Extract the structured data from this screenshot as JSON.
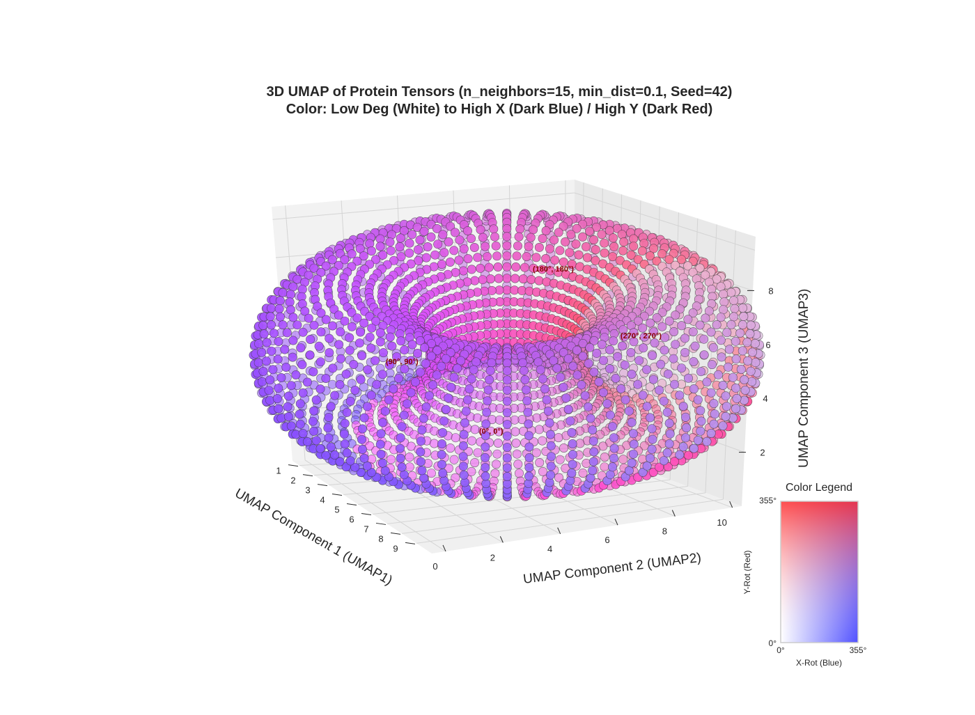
{
  "chart_data": {
    "type": "scatter",
    "projection": "3d",
    "title_line1": "3D UMAP of Protein Tensors (n_neighbors=15, min_dist=0.1, Seed=42)",
    "title_line2": "Color: Low Deg (White) to High X (Dark Blue) / High Y (Dark Red)",
    "xlabel": "UMAP Component 1 (UMAP1)",
    "ylabel": "UMAP Component 2 (UMAP2)",
    "zlabel": "UMAP Component 3 (UMAP3)",
    "x_ticks": [
      "1",
      "2",
      "3",
      "4",
      "5",
      "6",
      "7",
      "8",
      "9"
    ],
    "y_ticks": [
      "0",
      "2",
      "4",
      "6",
      "8",
      "10"
    ],
    "z_ticks": [
      "2",
      "4",
      "6",
      "8"
    ],
    "xlim": [
      0.5,
      9.5
    ],
    "ylim": [
      -1,
      11
    ],
    "zlim": [
      1,
      9.5
    ],
    "shape": "torus",
    "grid": true,
    "marker_edge_color": "#333333",
    "annotations": [
      {
        "text": "(0°, 0°)"
      },
      {
        "text": "(90°, 90°)"
      },
      {
        "text": "(180°, 180°)"
      },
      {
        "text": "(270°, 270°)"
      }
    ],
    "colors": {
      "low": "#ffffff",
      "high_x": "#5050ff",
      "high_y": "#ff5050",
      "both": "#ff50ff"
    },
    "legend": {
      "title": "Color Legend",
      "x_label": "X-Rot (Blue)",
      "y_label": "Y-Rot (Red)",
      "x_min": "0°",
      "x_max": "355°",
      "y_min": "0°",
      "y_max": "355°"
    }
  }
}
